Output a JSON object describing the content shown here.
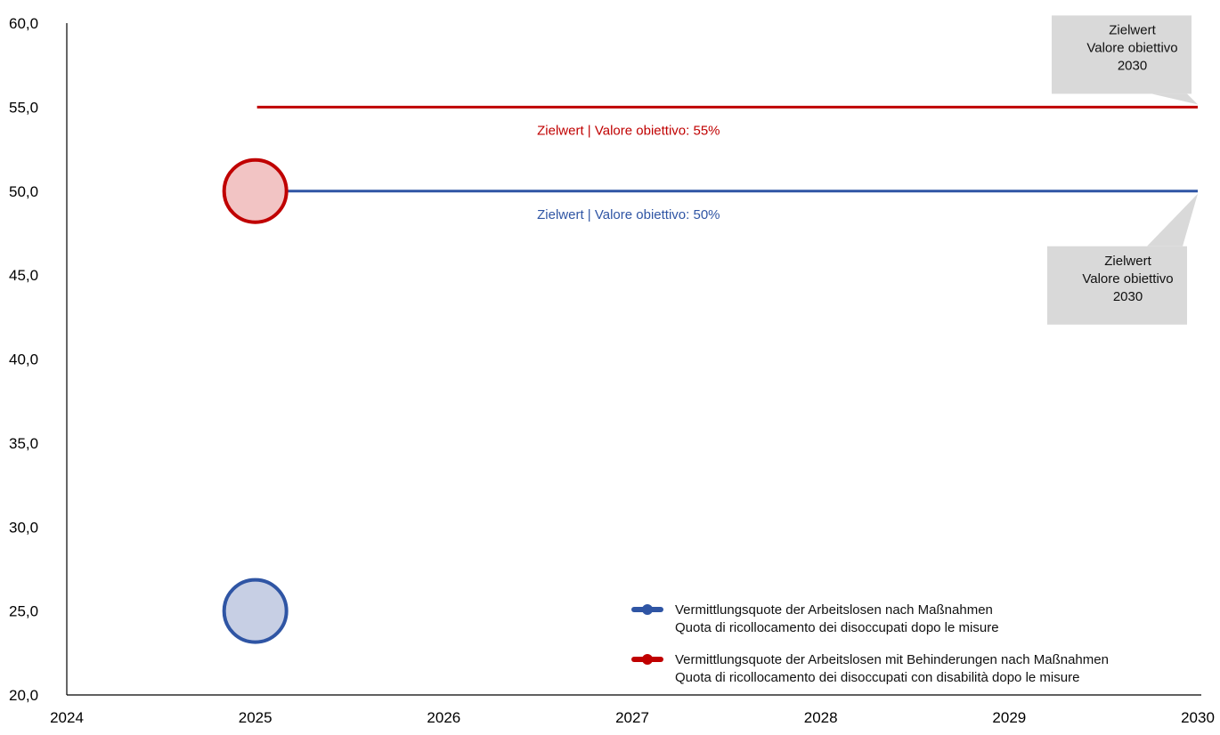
{
  "chart_data": {
    "type": "scatter",
    "title": "",
    "xlabel": "",
    "ylabel": "",
    "xlim": [
      2024,
      2030
    ],
    "ylim": [
      20,
      60
    ],
    "x_ticks": [
      "2024",
      "2025",
      "2026",
      "2027",
      "2028",
      "2029",
      "2030"
    ],
    "y_ticks": [
      "60,0",
      "55,0",
      "50,0",
      "45,0",
      "40,0",
      "35,0",
      "30,0",
      "25,0",
      "20,0"
    ],
    "grid": false,
    "legend_position": "bottom-right",
    "series": [
      {
        "name": "Vermittlungsquote der Arbeitslosen nach Maßnahmen",
        "name_it": "Quota di ricollocamento dei disoccupati dopo le misure",
        "color": "#2f55a4",
        "fill": "#c7cfe4",
        "points": [
          {
            "x": 2025,
            "y": 25
          }
        ],
        "target": {
          "value": 50,
          "x_start": 2025,
          "x_end": 2030,
          "label": "Zielwert  | Valore obiettivo: 50%"
        }
      },
      {
        "name": "Vermittlungsquote der Arbeitslosen mit Behinderungen nach Maßnahmen",
        "name_it": "Quota di ricollocamento dei disoccupati con disabilità dopo le misure",
        "color": "#c00000",
        "fill": "#f2c4c4",
        "points": [
          {
            "x": 2025,
            "y": 50
          }
        ],
        "target": {
          "value": 55,
          "x_start": 2025,
          "x_end": 2030,
          "label": "Zielwert  | Valore obiettivo:  55%"
        }
      }
    ],
    "annotations": [
      {
        "lines": [
          "Zielwert",
          "Valore obiettivo",
          "2030"
        ],
        "x": 2030,
        "y": 55,
        "placement": "above"
      },
      {
        "lines": [
          "Zielwert",
          "Valore obiettivo",
          "2030"
        ],
        "x": 2030,
        "y": 50,
        "placement": "below"
      }
    ]
  }
}
